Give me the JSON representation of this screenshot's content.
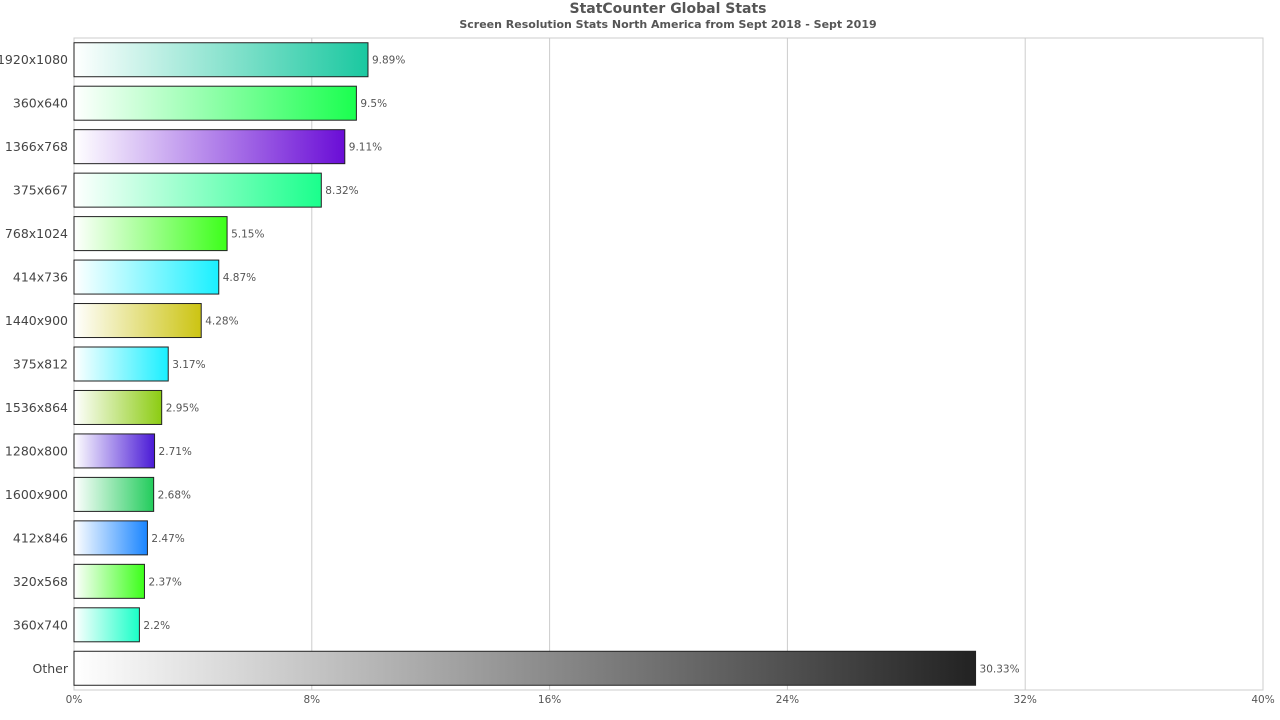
{
  "chart_data": {
    "type": "bar",
    "orientation": "horizontal",
    "title": "StatCounter Global Stats",
    "subtitle": "Screen Resolution Stats North America from Sept 2018 - Sept 2019",
    "categories": [
      "1920x1080",
      "360x640",
      "1366x768",
      "375x667",
      "768x1024",
      "414x736",
      "1440x900",
      "375x812",
      "1536x864",
      "1280x800",
      "1600x900",
      "412x846",
      "320x568",
      "360x740",
      "Other"
    ],
    "values": [
      9.89,
      9.5,
      9.11,
      8.32,
      5.15,
      4.87,
      4.28,
      3.17,
      2.95,
      2.71,
      2.68,
      2.47,
      2.37,
      2.2,
      30.33
    ],
    "data_labels": [
      "9.89%",
      "9.5%",
      "9.11%",
      "8.32%",
      "5.15%",
      "4.87%",
      "4.28%",
      "3.17%",
      "2.95%",
      "2.71%",
      "2.68%",
      "2.47%",
      "2.37%",
      "2.2%",
      "30.33%"
    ],
    "colors": [
      "#1ac8a0",
      "#1aff4f",
      "#6a0dd6",
      "#1aff8c",
      "#3cff1a",
      "#1af0ff",
      "#ccc412",
      "#1aefff",
      "#8ccc12",
      "#4a1ad6",
      "#22cc5c",
      "#1a85ff",
      "#3cff1a",
      "#1affc8",
      "#222222"
    ],
    "xlim": [
      0,
      40
    ],
    "xticks": [
      "0%",
      "8%",
      "16%",
      "24%",
      "32%",
      "40%"
    ],
    "xtick_values": [
      0,
      8,
      16,
      24,
      32,
      40
    ],
    "grid": true,
    "legend": "none"
  }
}
